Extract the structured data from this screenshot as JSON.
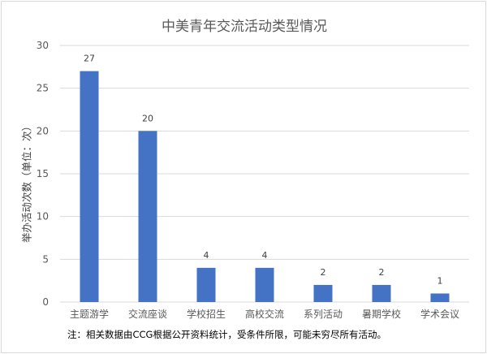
{
  "chart_data": {
    "type": "bar",
    "title": "中美青年交流活动类型情况",
    "ylabel": "举办活动次数（单位：次）",
    "xlabel": "",
    "categories": [
      "主题游学",
      "交流座谈",
      "学校招生",
      "高校交流",
      "系列活动",
      "暑期学校",
      "学术会议"
    ],
    "values": [
      27,
      20,
      4,
      4,
      2,
      2,
      1
    ],
    "ylim": [
      0,
      30
    ],
    "yticks": [
      0,
      5,
      10,
      15,
      20,
      25,
      30
    ],
    "grid": true,
    "legend": "none",
    "bar_color": "#4472c4",
    "grid_color": "#d9d9d9",
    "footnote": "注：相关数据由CCG根据公开资料统计，受条件所限，可能未穷尽所有活动。"
  }
}
